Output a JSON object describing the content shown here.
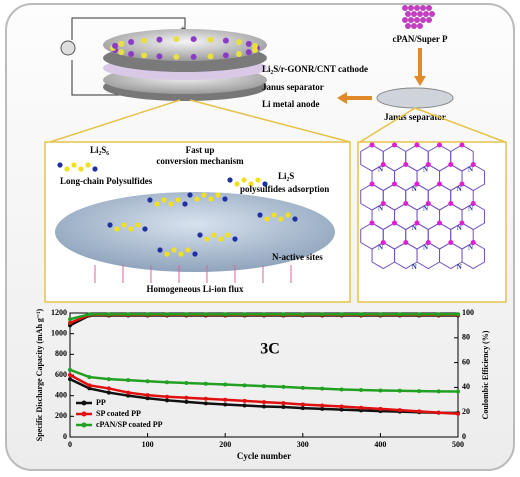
{
  "diagram": {
    "cathode": "Li₂S/r-GONR/CNT cathode",
    "separator": "Janus separator",
    "anode": "Li metal anode",
    "coating": "cPAN/Super P",
    "janus": "Janus separator",
    "li2s6": "Li₂S₆",
    "long_chain": "Long-chain Polysulfides",
    "fast_up": "Fast up",
    "conversion": "conversion mechanism",
    "li2s": "Li₂S",
    "adsorption": "polysulfides adsorption",
    "n_sites": "N-active sites",
    "flux": "Homogeneous Li-ion flux",
    "atom": "N",
    "plus": "+"
  },
  "chart_data": {
    "type": "line",
    "annotation": "3C",
    "xlabel": "Cycle number",
    "ylabel": "Specific Discharge Capacity (mAh g⁻¹)",
    "y2label": "Coulombic Efficiency (%)",
    "x": [
      0,
      25,
      50,
      75,
      100,
      125,
      150,
      175,
      200,
      225,
      250,
      275,
      300,
      325,
      350,
      375,
      400,
      425,
      450,
      475,
      500
    ],
    "xlim": [
      0,
      500
    ],
    "xticks": [
      0,
      100,
      200,
      300,
      400,
      500
    ],
    "ylim": [
      0,
      1200
    ],
    "yticks": [
      0,
      200,
      400,
      600,
      800,
      1000,
      1200
    ],
    "y2lim": [
      0,
      100
    ],
    "y2ticks": [
      0,
      20,
      40,
      60,
      80,
      100
    ],
    "legend": "lower left",
    "series": [
      {
        "name": "PP",
        "color": "#111111",
        "values": [
          560,
          470,
          430,
          400,
          375,
          355,
          340,
          325,
          315,
          305,
          295,
          290,
          280,
          272,
          265,
          258,
          250,
          245,
          240,
          235,
          232
        ]
      },
      {
        "name": "SP coated PP",
        "color": "#e01010",
        "values": [
          600,
          500,
          470,
          430,
          405,
          390,
          380,
          370,
          360,
          350,
          338,
          328,
          315,
          305,
          295,
          283,
          272,
          260,
          248,
          236,
          225
        ]
      },
      {
        "name": "cPAN/SP coated PP",
        "color": "#22a022",
        "values": [
          650,
          580,
          560,
          550,
          540,
          530,
          522,
          515,
          508,
          500,
          492,
          485,
          475,
          468,
          460,
          455,
          450,
          447,
          444,
          441,
          440
        ]
      },
      {
        "color": "#111111",
        "axis": "y2",
        "values": [
          90,
          98,
          98,
          98,
          98,
          98,
          98,
          98,
          98,
          98,
          98,
          98,
          98,
          98,
          98,
          98,
          98,
          98,
          98,
          98,
          98
        ]
      },
      {
        "color": "#e01010",
        "axis": "y2",
        "values": [
          92,
          98.5,
          98.5,
          98.5,
          98.5,
          98.5,
          98.5,
          98.5,
          98.5,
          98.5,
          98.5,
          98.5,
          98.5,
          98.5,
          98.5,
          98.5,
          98.5,
          98.5,
          98.5,
          98.5,
          98.5
        ]
      },
      {
        "color": "#22a022",
        "axis": "y2",
        "values": [
          95,
          99,
          99,
          99,
          99,
          99,
          99,
          99,
          99,
          99,
          99,
          99,
          99,
          99,
          99,
          99,
          99,
          99,
          99,
          99,
          99
        ]
      }
    ]
  }
}
